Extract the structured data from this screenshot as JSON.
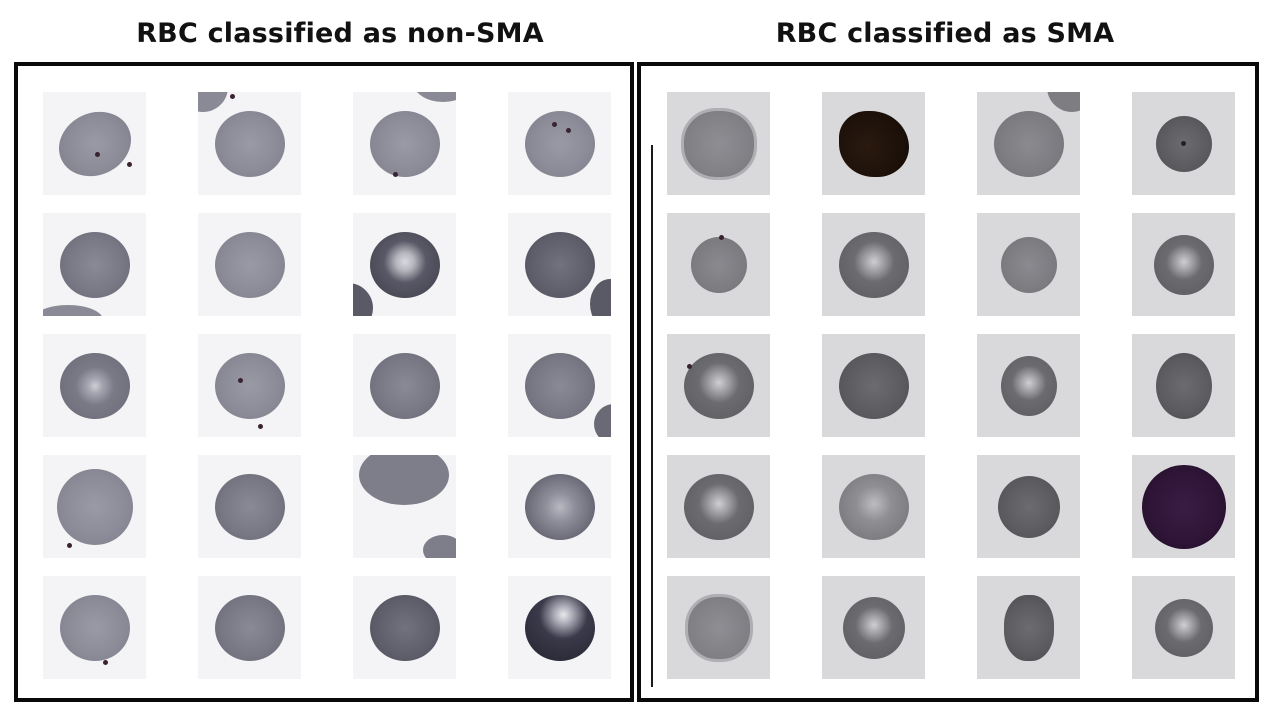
{
  "titles": {
    "left": "RBC classified as non-SMA",
    "right": "RBC classified as SMA"
  },
  "panels": {
    "left": {
      "rows": 5,
      "columns": 4
    },
    "right": {
      "rows": 5,
      "columns": 4
    }
  }
}
